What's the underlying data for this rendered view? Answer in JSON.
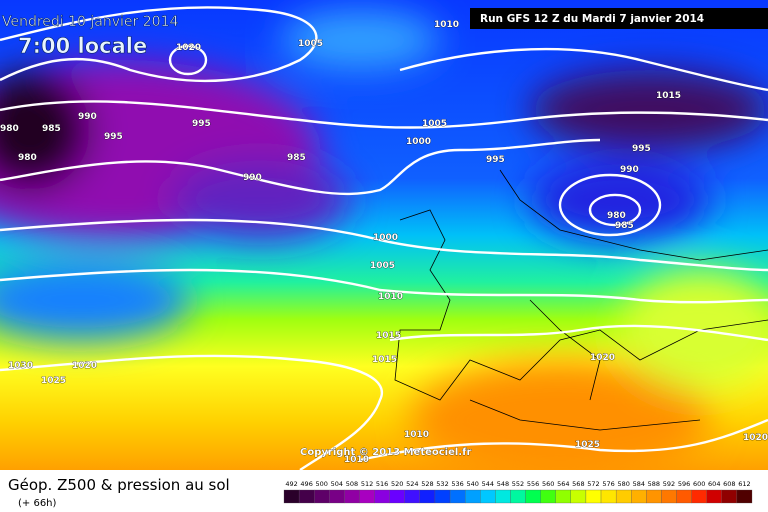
{
  "header": {
    "date": "Vendredi 10 janvier 2014",
    "time": "7:00 locale",
    "run": "Run GFS 12 Z du Mardi 7 janvier 2014"
  },
  "copyright": "Copyright © 2013 Meteociel.fr",
  "isobar_labels": [
    "1020",
    "1005",
    "1010",
    "1015",
    "980",
    "985",
    "990",
    "995",
    "980",
    "995",
    "985",
    "990",
    "1005",
    "1000",
    "995",
    "995",
    "990",
    "980",
    "985",
    "1000",
    "1005",
    "1010",
    "1015",
    "1015",
    "1020",
    "1030",
    "1020",
    "1025",
    "1010",
    "1010",
    "1025",
    "1020"
  ],
  "footer": {
    "title": "Géop. Z500 & pression au sol",
    "lead": "(+ 66h)"
  },
  "legend": {
    "values": [
      492,
      496,
      500,
      504,
      508,
      512,
      516,
      520,
      524,
      528,
      532,
      536,
      540,
      544,
      548,
      552,
      556,
      560,
      564,
      568,
      572,
      576,
      580,
      584,
      588,
      592,
      596,
      600,
      604,
      608,
      612
    ],
    "colors": [
      "#2a002a",
      "#44004a",
      "#5e0068",
      "#780086",
      "#9000a4",
      "#a800c0",
      "#8a00e0",
      "#6a00ff",
      "#4010ff",
      "#1020ff",
      "#0040ff",
      "#0070ff",
      "#00a0ff",
      "#00c8ff",
      "#00e8e0",
      "#00f8a0",
      "#00ff50",
      "#40ff10",
      "#90ff00",
      "#c8ff00",
      "#ffff00",
      "#ffe600",
      "#ffcc00",
      "#ffb000",
      "#ff9400",
      "#ff7800",
      "#ff5a00",
      "#ff2a00",
      "#d00000",
      "#900000",
      "#500000"
    ]
  }
}
